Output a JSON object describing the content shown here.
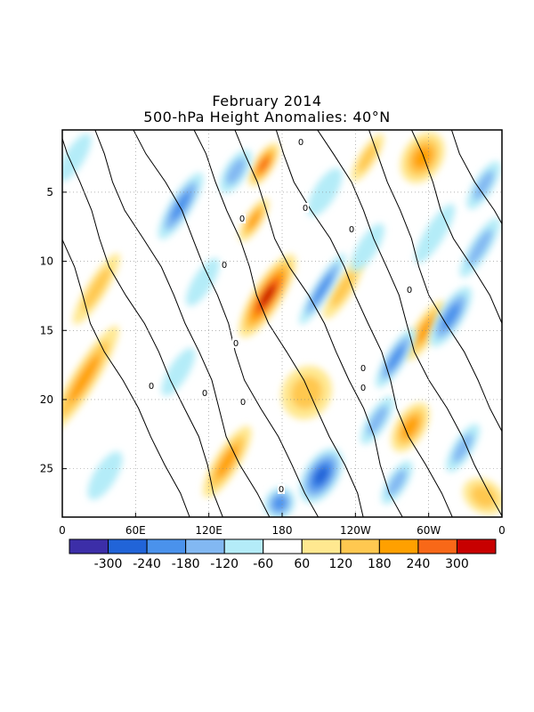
{
  "title": "February 2014",
  "subtitle": "500-hPa Height Anomalies: 40°N",
  "chart_data": {
    "type": "heatmap",
    "x_axis": {
      "range_deg_east": [
        0,
        360
      ],
      "tick_labels": [
        "0",
        "60E",
        "120E",
        "180",
        "120W",
        "60W",
        "0"
      ]
    },
    "y_axis": {
      "range_day": [
        1,
        28
      ],
      "reversed": true,
      "tick_labels": [
        "5",
        "10",
        "15",
        "20",
        "25"
      ],
      "tick_values": [
        5,
        10,
        15,
        20,
        25
      ]
    },
    "grid": true,
    "contour_label": "0",
    "colorbar": {
      "labels": [
        "-300",
        "-240",
        "-180",
        "-120",
        "-60",
        "60",
        "120",
        "180",
        "240",
        "300"
      ],
      "colors": [
        "#3c2ea8",
        "#2164d8",
        "#4a92ec",
        "#82b8f2",
        "#b4ecf8",
        "#ffffff",
        "#ffe890",
        "#ffc850",
        "#ffa000",
        "#f86818",
        "#c80000"
      ]
    },
    "anomaly_features": [
      {
        "lon": 168,
        "day": 12.5,
        "value": 320,
        "width_deg": 12,
        "length_days": 3.5
      },
      {
        "lon": 165,
        "day": 3.0,
        "value": 280,
        "width_deg": 8,
        "length_days": 1.8
      },
      {
        "lon": 157,
        "day": 7.0,
        "value": 190,
        "width_deg": 7,
        "length_days": 1.8
      },
      {
        "lon": 200,
        "day": 19.5,
        "value": 150,
        "width_deg": 20,
        "length_days": 2.0
      },
      {
        "lon": 135,
        "day": 24.5,
        "value": 210,
        "width_deg": 10,
        "length_days": 3.0
      },
      {
        "lon": 18,
        "day": 18.5,
        "value": 200,
        "width_deg": 10,
        "length_days": 4.5
      },
      {
        "lon": 28,
        "day": 12.0,
        "value": 150,
        "width_deg": 8,
        "length_days": 3.0
      },
      {
        "lon": 295,
        "day": 2.5,
        "value": 220,
        "width_deg": 16,
        "length_days": 2.0
      },
      {
        "lon": 297,
        "day": 15.0,
        "value": 180,
        "width_deg": 9,
        "length_days": 2.5
      },
      {
        "lon": 285,
        "day": 22.0,
        "value": 200,
        "width_deg": 12,
        "length_days": 2.0
      },
      {
        "lon": 345,
        "day": 27.0,
        "value": 170,
        "width_deg": 18,
        "length_days": 1.2
      },
      {
        "lon": 230,
        "day": 12.0,
        "value": 120,
        "width_deg": 8,
        "length_days": 2.5
      },
      {
        "lon": 250,
        "day": 2.5,
        "value": 140,
        "width_deg": 7,
        "length_days": 2.0
      },
      {
        "lon": 97,
        "day": 6.0,
        "value": -180,
        "width_deg": 9,
        "length_days": 2.8
      },
      {
        "lon": 142,
        "day": 3.5,
        "value": -170,
        "width_deg": 9,
        "length_days": 1.8
      },
      {
        "lon": 213,
        "day": 12.0,
        "value": -180,
        "width_deg": 7,
        "length_days": 3.0
      },
      {
        "lon": 212,
        "day": 25.5,
        "value": -270,
        "width_deg": 14,
        "length_days": 2.2
      },
      {
        "lon": 178,
        "day": 27.5,
        "value": -230,
        "width_deg": 12,
        "length_days": 1.2
      },
      {
        "lon": 273,
        "day": 17.0,
        "value": -200,
        "width_deg": 8,
        "length_days": 2.5
      },
      {
        "lon": 318,
        "day": 14.0,
        "value": -200,
        "width_deg": 10,
        "length_days": 2.5
      },
      {
        "lon": 258,
        "day": 21.5,
        "value": -150,
        "width_deg": 8,
        "length_days": 2.0
      },
      {
        "lon": 328,
        "day": 23.5,
        "value": -150,
        "width_deg": 8,
        "length_days": 2.0
      },
      {
        "lon": 274,
        "day": 26.0,
        "value": -170,
        "width_deg": 8,
        "length_days": 1.8
      },
      {
        "lon": 342,
        "day": 9.0,
        "value": -150,
        "width_deg": 8,
        "length_days": 2.5
      },
      {
        "lon": 345,
        "day": 4.5,
        "value": -130,
        "width_deg": 8,
        "length_days": 2.0
      },
      {
        "lon": 10,
        "day": 2.5,
        "value": -100,
        "width_deg": 8,
        "length_days": 2.0
      },
      {
        "lon": 35,
        "day": 25.5,
        "value": -100,
        "width_deg": 9,
        "length_days": 2.0
      },
      {
        "lon": 215,
        "day": 5.0,
        "value": -90,
        "width_deg": 9,
        "length_days": 2.0
      },
      {
        "lon": 95,
        "day": 18.0,
        "value": -90,
        "width_deg": 8,
        "length_days": 2.0
      },
      {
        "lon": 115,
        "day": 11.5,
        "value": -80,
        "width_deg": 8,
        "length_days": 2.0
      },
      {
        "lon": 305,
        "day": 8.0,
        "value": -110,
        "width_deg": 8,
        "length_days": 2.5
      },
      {
        "lon": 250,
        "day": 9.0,
        "value": -110,
        "width_deg": 8,
        "length_days": 2.0
      }
    ]
  }
}
